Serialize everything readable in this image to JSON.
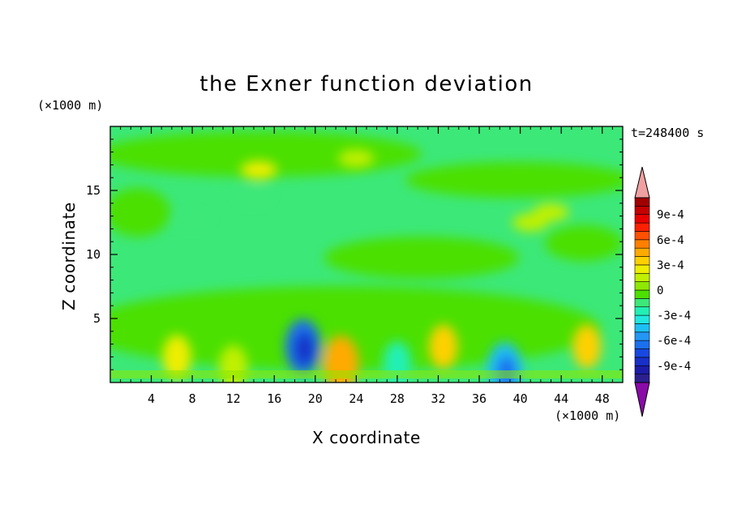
{
  "chart_data": {
    "type": "heatmap",
    "title": "the Exner function deviation",
    "xlabel": "X coordinate",
    "ylabel": "Z coordinate",
    "x_unit": "(×1000 m)",
    "y_unit": "(×1000 m)",
    "time_label": "t=248400 s",
    "xlim": [
      0,
      50
    ],
    "ylim": [
      0,
      20
    ],
    "x_ticks": [
      4,
      8,
      12,
      16,
      20,
      24,
      28,
      32,
      36,
      40,
      44,
      48
    ],
    "x_tick_labels": [
      "4",
      "8",
      "12",
      "16",
      "20",
      "24",
      "28",
      "32",
      "36",
      "40",
      "44",
      "48"
    ],
    "y_ticks": [
      5,
      10,
      15
    ],
    "y_tick_labels": [
      "5",
      "10",
      "15"
    ],
    "colorbar": {
      "levels": [
        -0.0011,
        -0.001,
        -0.0009,
        -0.0008,
        -0.0007,
        -0.0006,
        -0.0005,
        -0.0004,
        -0.0003,
        -0.0002,
        -0.0001,
        0,
        0.0001,
        0.0002,
        0.0003,
        0.0004,
        0.0005,
        0.0006,
        0.0007,
        0.0008,
        0.0009,
        0.001,
        0.0011
      ],
      "colors": [
        "#2c1f8f",
        "#1c1ca8",
        "#1830c8",
        "#1848e0",
        "#1a70ee",
        "#2496f4",
        "#1cc0f4",
        "#20e8e0",
        "#22f0b4",
        "#3ce878",
        "#4ce000",
        "#8ee800",
        "#c0f000",
        "#eeee00",
        "#ffd000",
        "#ffaa00",
        "#ff8000",
        "#ff5000",
        "#ff2000",
        "#e80000",
        "#c40000",
        "#a00000"
      ],
      "under_color": "#8a0aa8",
      "over_color": "#f0a0a0",
      "tick_values": [
        0.0009,
        0.0006,
        0.0003,
        0,
        -0.0003,
        -0.0006,
        -0.0009
      ],
      "tick_labels": [
        "9e-4",
        "6e-4",
        "3e-4",
        "0",
        "-3e-4",
        "-6e-4",
        "-9e-4"
      ]
    },
    "field_features": [
      {
        "x": 18.8,
        "z": 2.8,
        "value": -0.00065
      },
      {
        "x": 38.5,
        "z": 1.0,
        "value": -0.0005
      },
      {
        "x": 28.0,
        "z": 1.5,
        "value": -0.00025
      },
      {
        "x": 22.5,
        "z": 1.5,
        "value": 0.00045
      },
      {
        "x": 32.5,
        "z": 2.8,
        "value": 0.0003
      },
      {
        "x": 46.5,
        "z": 2.8,
        "value": 0.0003
      },
      {
        "x": 6.5,
        "z": 2.0,
        "value": 0.0002
      },
      {
        "x": 12.0,
        "z": 1.2,
        "value": 0.00015
      },
      {
        "x": 41.0,
        "z": 12.5,
        "value": 0.0001
      },
      {
        "x": 43.0,
        "z": 13.3,
        "value": 0.00018
      },
      {
        "x": 8.0,
        "z": 12.6,
        "value": -0.00015
      },
      {
        "x": 14.0,
        "z": 14.5,
        "value": -0.00012
      },
      {
        "x": 24.0,
        "z": 17.5,
        "value": 0.00012
      },
      {
        "x": 14.5,
        "z": 16.6,
        "value": 0.00022
      }
    ]
  }
}
